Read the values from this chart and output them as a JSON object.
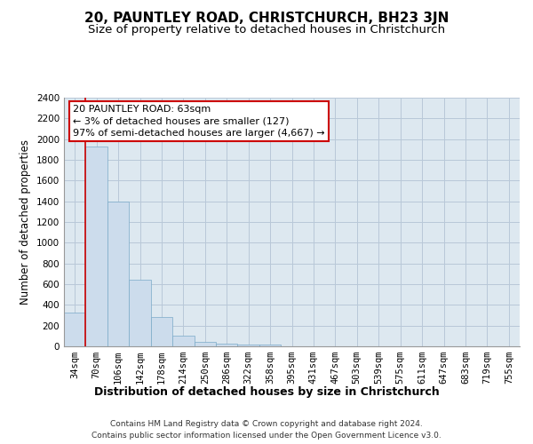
{
  "title": "20, PAUNTLEY ROAD, CHRISTCHURCH, BH23 3JN",
  "subtitle": "Size of property relative to detached houses in Christchurch",
  "xlabel": "Distribution of detached houses by size in Christchurch",
  "ylabel": "Number of detached properties",
  "footer_line1": "Contains HM Land Registry data © Crown copyright and database right 2024.",
  "footer_line2": "Contains public sector information licensed under the Open Government Licence v3.0.",
  "bar_labels": [
    "34sqm",
    "70sqm",
    "106sqm",
    "142sqm",
    "178sqm",
    "214sqm",
    "250sqm",
    "286sqm",
    "322sqm",
    "358sqm",
    "395sqm",
    "431sqm",
    "467sqm",
    "503sqm",
    "539sqm",
    "575sqm",
    "611sqm",
    "647sqm",
    "683sqm",
    "719sqm",
    "755sqm"
  ],
  "bar_values": [
    325,
    1930,
    1395,
    640,
    280,
    105,
    42,
    30,
    20,
    14,
    0,
    0,
    0,
    0,
    0,
    0,
    0,
    0,
    0,
    0,
    0
  ],
  "bar_color": "#ccdcec",
  "bar_edge_color": "#7aaac8",
  "grid_color": "#b8c8d8",
  "plot_bg_color": "#dde8f0",
  "annotation_text": "20 PAUNTLEY ROAD: 63sqm\n← 3% of detached houses are smaller (127)\n97% of semi-detached houses are larger (4,667) →",
  "annotation_box_color": "#ffffff",
  "annotation_edge_color": "#cc0000",
  "red_line_color": "#cc0000",
  "ylim": [
    0,
    2400
  ],
  "yticks": [
    0,
    200,
    400,
    600,
    800,
    1000,
    1200,
    1400,
    1600,
    1800,
    2000,
    2200,
    2400
  ],
  "title_fontsize": 11,
  "subtitle_fontsize": 9.5,
  "xlabel_fontsize": 9,
  "ylabel_fontsize": 8.5,
  "tick_fontsize": 7.5,
  "annotation_fontsize": 8,
  "footer_fontsize": 6.5
}
